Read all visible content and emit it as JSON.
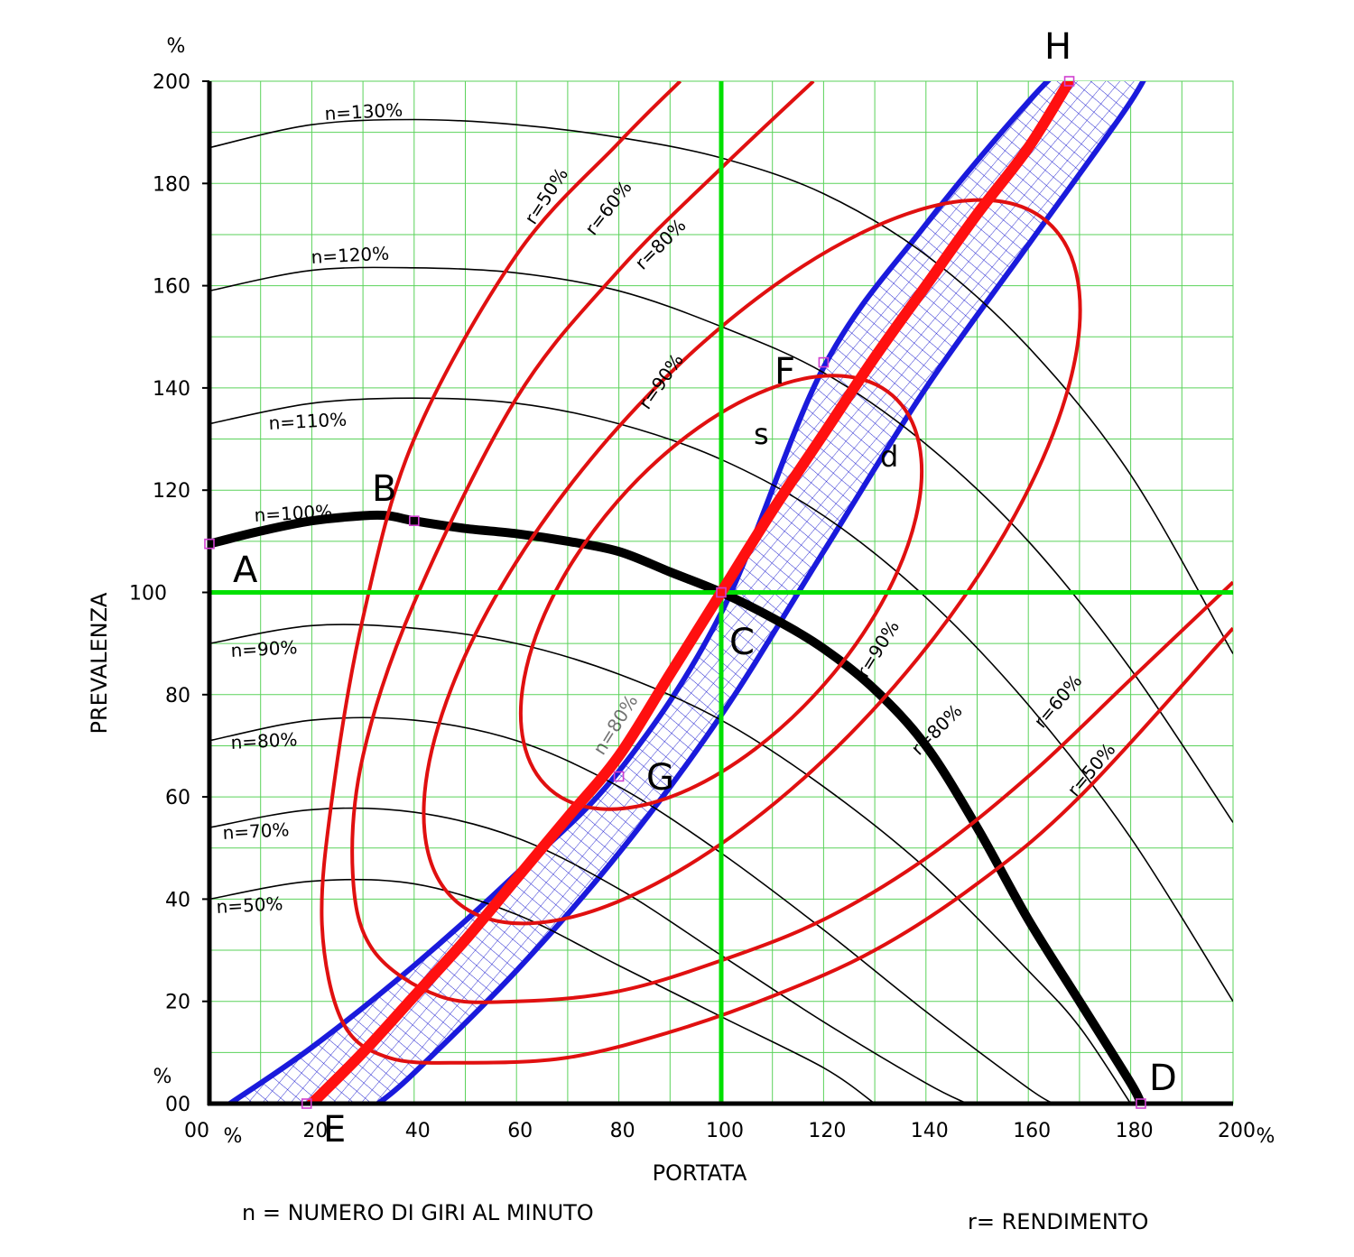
{
  "chart_data": {
    "type": "line",
    "xlabel": "PORTATA",
    "ylabel": "PREVALENZA",
    "x_unit": "%",
    "y_unit": "%",
    "xlim": [
      0,
      200
    ],
    "ylim": [
      0,
      200
    ],
    "x_ticks": [
      "00",
      "20",
      "40",
      "60",
      "80",
      "100",
      "120",
      "140",
      "160",
      "180",
      "200"
    ],
    "y_ticks": [
      "00",
      "20",
      "40",
      "60",
      "80",
      "100",
      "120",
      "140",
      "160",
      "180",
      "200"
    ],
    "grid": true,
    "notes": [
      "n = NUMERO DI GIRI AL MINUTO",
      "r= RENDIMENTO"
    ],
    "colors": {
      "speed_curves": "#000000",
      "efficiency_curves": "#e01010",
      "band": "#1a1adc",
      "grid": "#5ad25a",
      "reference_lines": "#00e000",
      "system_curve": "#ff1010",
      "markers": "#d040d0"
    },
    "reference": {
      "x": 100,
      "y": 100
    },
    "speed_curves": [
      {
        "label": "n=130%",
        "x": [
          0,
          20,
          40,
          60,
          80,
          100,
          120,
          140,
          160,
          180,
          200
        ],
        "y": [
          187,
          191.5,
          192.5,
          191.5,
          189,
          185,
          178,
          166,
          148,
          123,
          88
        ]
      },
      {
        "label": "n=120%",
        "x": [
          0,
          20,
          40,
          60,
          80,
          100,
          120,
          140,
          160,
          180,
          200
        ],
        "y": [
          159,
          163,
          163.5,
          162.5,
          159,
          152,
          143,
          129,
          110,
          85,
          55
        ]
      },
      {
        "label": "n=110%",
        "x": [
          0,
          20,
          40,
          60,
          80,
          100,
          120,
          140,
          160,
          180,
          200
        ],
        "y": [
          133,
          137,
          138,
          137,
          133,
          126,
          115,
          99,
          78,
          52,
          20
        ]
      },
      {
        "label": "n=100%",
        "x": [
          0,
          10,
          20,
          30,
          35,
          40,
          50,
          60,
          70,
          80,
          90,
          100,
          110,
          120,
          130,
          140,
          150,
          160,
          170,
          180,
          182
        ],
        "y": [
          109.5,
          112,
          114,
          115,
          115,
          114,
          112.5,
          111.5,
          110,
          108,
          104,
          100,
          95,
          89,
          81,
          70,
          54,
          36,
          20,
          4,
          0
        ],
        "bold": true
      },
      {
        "label": "n=90%",
        "x": [
          0,
          20,
          40,
          60,
          80,
          100,
          120,
          140,
          160,
          170,
          180
        ],
        "y": [
          90,
          93.5,
          93,
          90,
          84,
          75,
          62,
          46,
          26,
          15,
          0
        ]
      },
      {
        "label": "n=80%",
        "x": [
          0,
          20,
          40,
          60,
          80,
          100,
          120,
          140,
          160,
          165
        ],
        "y": [
          71,
          75,
          75,
          71,
          62,
          49,
          34,
          18,
          3,
          0
        ]
      },
      {
        "label": "n=70%",
        "x": [
          0,
          20,
          40,
          60,
          80,
          100,
          120,
          140,
          148
        ],
        "y": [
          54,
          57.5,
          57,
          52,
          42,
          29,
          16,
          4,
          0
        ]
      },
      {
        "label": "n=50%",
        "x": [
          0,
          20,
          40,
          60,
          80,
          100,
          120,
          130
        ],
        "y": [
          40,
          43.5,
          43,
          37,
          27,
          17,
          7,
          0
        ]
      }
    ],
    "efficiency_curves": [
      {
        "label": "r=90%",
        "type": "ellipse",
        "cx": 100,
        "cy": 100,
        "rx": 51,
        "ry": 27,
        "tilt": 49
      },
      {
        "label": "r=80%",
        "type": "ellipse",
        "cx": 106,
        "cy": 106,
        "rx": 88,
        "ry": 37,
        "tilt": 49
      },
      {
        "label": "r=60%",
        "type": "open",
        "x": [
          118,
          100,
          80,
          60,
          40,
          30,
          28,
          32,
          45,
          60,
          80,
          100,
          120,
          140,
          160,
          180,
          200
        ],
        "y": [
          200,
          183,
          163,
          138,
          98,
          68,
          45,
          30,
          21,
          20,
          22,
          28,
          36,
          48,
          64,
          83,
          102
        ]
      },
      {
        "label": "r=50%",
        "type": "open",
        "x": [
          92,
          80,
          60,
          40,
          30,
          24,
          22,
          26,
          35,
          50,
          70,
          90,
          110,
          130,
          150,
          170,
          200
        ],
        "y": [
          200,
          188,
          166,
          130,
          95,
          60,
          35,
          16,
          9,
          8,
          9,
          14,
          21,
          30,
          43,
          60,
          93
        ]
      }
    ],
    "system_curve": {
      "x": [
        20,
        30,
        40,
        50,
        60,
        70,
        80,
        90,
        100,
        110,
        120,
        130,
        140,
        150,
        160,
        168
      ],
      "y": [
        0,
        10,
        21,
        32,
        44,
        56,
        68,
        84,
        100,
        116,
        131,
        146,
        160,
        174,
        187,
        200
      ]
    },
    "band": {
      "left": {
        "x": [
          4,
          20,
          40,
          60,
          80,
          100,
          120,
          140,
          160,
          170
        ],
        "y": [
          0,
          11,
          27,
          45,
          65,
          96,
          144,
          172,
          196,
          206
        ]
      },
      "right": {
        "x": [
          33,
          40,
          60,
          80,
          100,
          120,
          140,
          160,
          180,
          185
        ],
        "y": [
          0,
          6,
          26,
          49,
          76,
          108,
          140,
          168,
          196,
          206
        ]
      },
      "label_s": "s",
      "label_d": "d",
      "label_dn": "n=80%"
    },
    "points": [
      {
        "id": "A",
        "x": 0,
        "y": 109.5
      },
      {
        "id": "B",
        "x": 40,
        "y": 114
      },
      {
        "id": "C",
        "x": 100,
        "y": 100
      },
      {
        "id": "D",
        "x": 182,
        "y": 0
      },
      {
        "id": "E",
        "x": 19,
        "y": 0
      },
      {
        "id": "F",
        "x": 120,
        "y": 145
      },
      {
        "id": "G",
        "x": 80,
        "y": 64
      },
      {
        "id": "H",
        "x": 168,
        "y": 200
      }
    ],
    "extra_labels": [
      "s",
      "d"
    ]
  }
}
